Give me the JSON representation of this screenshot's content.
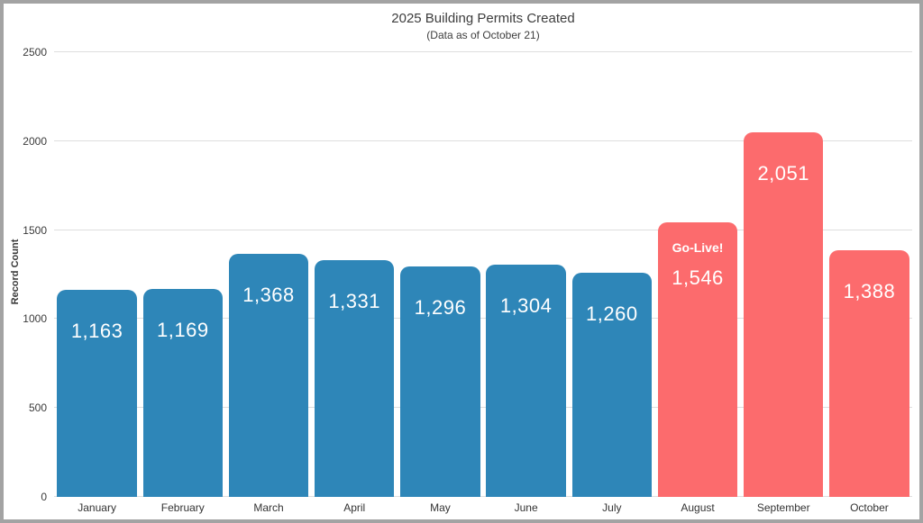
{
  "frame": {
    "border_color": "#a3a3a3",
    "background": "#ffffff"
  },
  "chart_data": {
    "type": "bar",
    "title": "2025 Building Permits Created",
    "subtitle": "(Data as of October 21)",
    "xlabel": "",
    "ylabel": "Record Count",
    "ylim": [
      0,
      2500
    ],
    "yticks": [
      0,
      500,
      1000,
      1500,
      2000,
      2500
    ],
    "grid": true,
    "legend_position": "none",
    "categories": [
      "January",
      "February",
      "March",
      "April",
      "May",
      "June",
      "July",
      "August",
      "September",
      "October"
    ],
    "values": [
      1163,
      1169,
      1368,
      1331,
      1296,
      1304,
      1260,
      1546,
      2051,
      1388
    ],
    "value_labels": [
      "1,163",
      "1,169",
      "1,368",
      "1,331",
      "1,296",
      "1,304",
      "1,260",
      "1,546",
      "2,051",
      "1,388"
    ],
    "bar_colors": [
      "#2e86b8",
      "#2e86b8",
      "#2e86b8",
      "#2e86b8",
      "#2e86b8",
      "#2e86b8",
      "#2e86b8",
      "#fc6b6d",
      "#fc6b6d",
      "#fc6b6d"
    ],
    "annotations": [
      {
        "category": "August",
        "text": "Go-Live!"
      }
    ]
  },
  "colors": {
    "pre_golive_bar": "#2e86b8",
    "post_golive_bar": "#fc6b6d",
    "gridline": "#dedede",
    "axis_text": "#3a3a3a",
    "title_text": "#3d3d3d",
    "bar_label_text": "#ffffff"
  }
}
